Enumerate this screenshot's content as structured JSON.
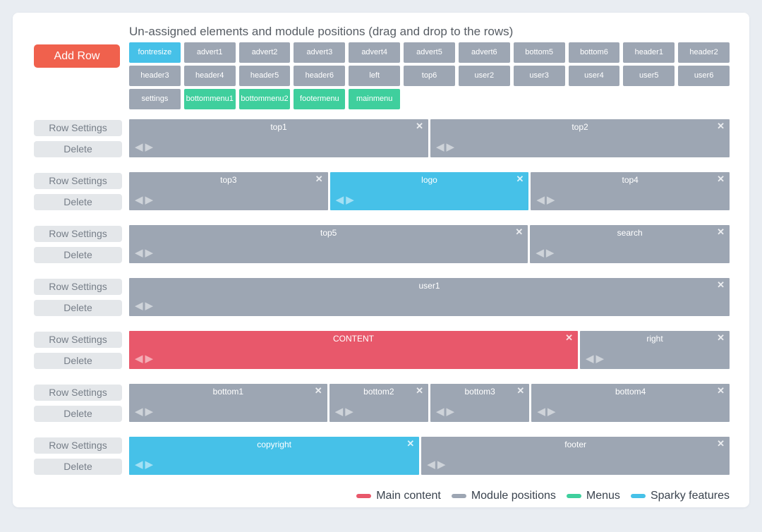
{
  "page": {
    "title": "Un-assigned elements and module positions (drag and drop to the rows)",
    "add_row_label": "Add Row",
    "row_settings_label": "Row Settings",
    "delete_label": "Delete"
  },
  "colors": {
    "main": "#e8586b",
    "module": "#9da6b3",
    "menu": "#3fcf9d",
    "sparky": "#46c1e8",
    "add_row": "#f0614d"
  },
  "icons": {
    "close": "✕",
    "move_left": "◀",
    "move_right": "▶"
  },
  "unassigned": [
    {
      "label": "fontresize",
      "type": "sparky"
    },
    {
      "label": "advert1",
      "type": "module"
    },
    {
      "label": "advert2",
      "type": "module"
    },
    {
      "label": "advert3",
      "type": "module"
    },
    {
      "label": "advert4",
      "type": "module"
    },
    {
      "label": "advert5",
      "type": "module"
    },
    {
      "label": "advert6",
      "type": "module"
    },
    {
      "label": "bottom5",
      "type": "module"
    },
    {
      "label": "bottom6",
      "type": "module"
    },
    {
      "label": "header1",
      "type": "module"
    },
    {
      "label": "header2",
      "type": "module"
    },
    {
      "label": "header3",
      "type": "module"
    },
    {
      "label": "header4",
      "type": "module"
    },
    {
      "label": "header5",
      "type": "module"
    },
    {
      "label": "header6",
      "type": "module"
    },
    {
      "label": "left",
      "type": "module"
    },
    {
      "label": "top6",
      "type": "module"
    },
    {
      "label": "user2",
      "type": "module"
    },
    {
      "label": "user3",
      "type": "module"
    },
    {
      "label": "user4",
      "type": "module"
    },
    {
      "label": "user5",
      "type": "module"
    },
    {
      "label": "user6",
      "type": "module"
    },
    {
      "label": "settings",
      "type": "module"
    },
    {
      "label": "bottommenu1",
      "type": "menu"
    },
    {
      "label": "bottommenu2",
      "type": "menu"
    },
    {
      "label": "footermenu",
      "type": "menu"
    },
    {
      "label": "mainmenu",
      "type": "menu"
    }
  ],
  "rows": [
    {
      "blocks": [
        {
          "label": "top1",
          "type": "module",
          "flex": 1
        },
        {
          "label": "top2",
          "type": "module",
          "flex": 1
        }
      ]
    },
    {
      "blocks": [
        {
          "label": "top3",
          "type": "module",
          "flex": 1
        },
        {
          "label": "logo",
          "type": "sparky",
          "flex": 1
        },
        {
          "label": "top4",
          "type": "module",
          "flex": 1
        }
      ]
    },
    {
      "blocks": [
        {
          "label": "top5",
          "type": "module",
          "flex": 2
        },
        {
          "label": "search",
          "type": "module",
          "flex": 1
        }
      ]
    },
    {
      "blocks": [
        {
          "label": "user1",
          "type": "module",
          "flex": 1
        }
      ]
    },
    {
      "blocks": [
        {
          "label": "CONTENT",
          "type": "main",
          "flex": 3
        },
        {
          "label": "right",
          "type": "module",
          "flex": 1
        }
      ]
    },
    {
      "blocks": [
        {
          "label": "bottom1",
          "type": "module",
          "flex": 2
        },
        {
          "label": "bottom2",
          "type": "module",
          "flex": 1
        },
        {
          "label": "bottom3",
          "type": "module",
          "flex": 1
        },
        {
          "label": "bottom4",
          "type": "module",
          "flex": 2
        }
      ]
    },
    {
      "blocks": [
        {
          "label": "copyright",
          "type": "sparky",
          "flex": 0.97
        },
        {
          "label": "footer",
          "type": "module",
          "flex": 1.03
        }
      ]
    }
  ],
  "legend": [
    {
      "label": "Main content",
      "type": "main"
    },
    {
      "label": "Module positions",
      "type": "module"
    },
    {
      "label": "Menus",
      "type": "menu"
    },
    {
      "label": "Sparky features",
      "type": "sparky"
    }
  ]
}
